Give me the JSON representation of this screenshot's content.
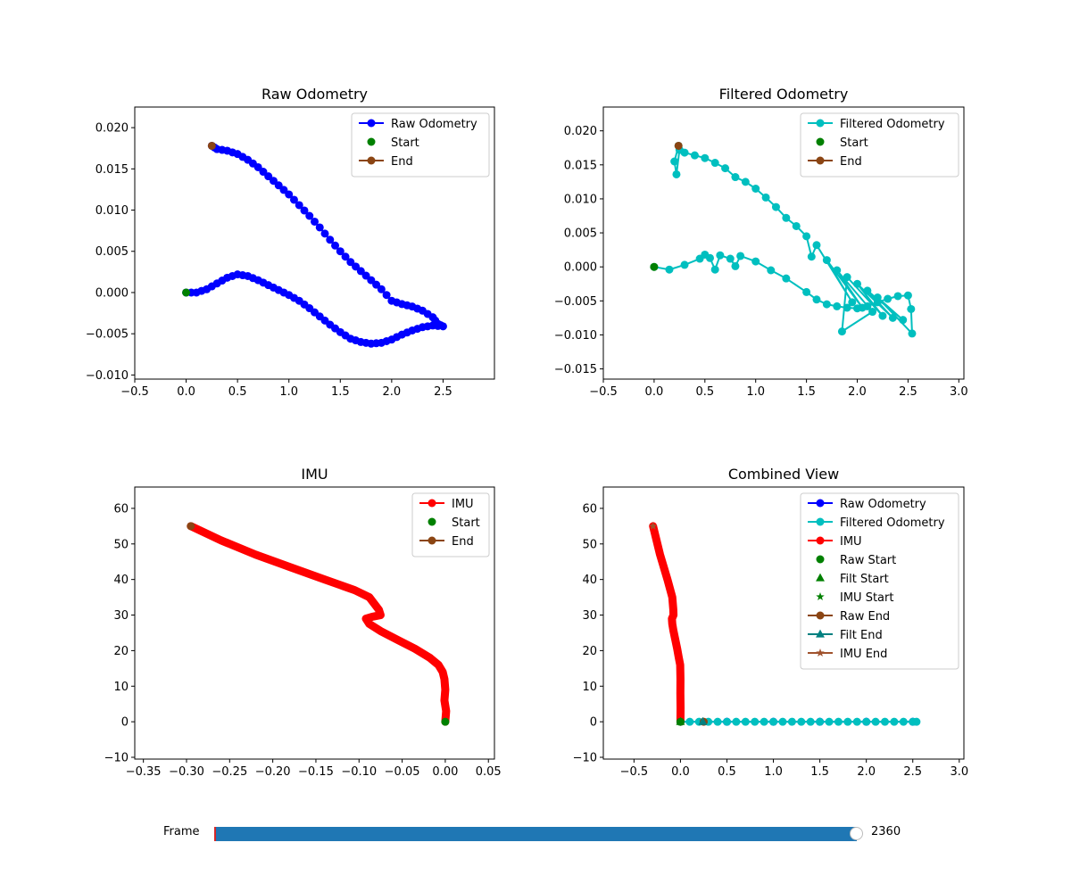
{
  "chart_data": [
    {
      "type": "line",
      "title": "Raw Odometry",
      "xlabel": "",
      "ylabel": "",
      "xlim": [
        -0.5,
        3.0
      ],
      "ylim": [
        -0.0105,
        0.0225
      ],
      "xticks": [
        -0.5,
        0.0,
        0.5,
        1.0,
        1.5,
        2.0,
        2.5
      ],
      "xtick_labels": [
        "−0.5",
        "0.0",
        "0.5",
        "1.0",
        "1.5",
        "2.0",
        "2.5"
      ],
      "yticks": [
        -0.01,
        -0.005,
        0.0,
        0.005,
        0.01,
        0.015,
        0.02
      ],
      "ytick_labels": [
        "−0.010",
        "−0.005",
        "0.000",
        "0.005",
        "0.010",
        "0.015",
        "0.020"
      ],
      "grid": false,
      "legend_position": "top-right",
      "series": [
        {
          "name": "Raw Odometry",
          "kind": "line-markers",
          "color": "#0000ff",
          "smooth": true,
          "x": [
            0.0,
            0.1,
            0.2,
            0.3,
            0.4,
            0.5,
            0.6,
            0.7,
            0.8,
            0.9,
            1.0,
            1.1,
            1.2,
            1.3,
            1.4,
            1.5,
            1.6,
            1.7,
            1.8,
            1.9,
            2.0,
            2.1,
            2.2,
            2.3,
            2.4,
            2.5,
            2.45,
            2.4,
            2.3,
            2.2,
            2.1,
            2.0,
            1.9,
            1.8,
            1.7,
            1.6,
            1.5,
            1.4,
            1.3,
            1.2,
            1.1,
            1.0,
            0.9,
            0.8,
            0.7,
            0.6,
            0.5,
            0.4,
            0.3,
            0.25
          ],
          "y": [
            0.0,
            0.0,
            0.0004,
            0.0011,
            0.0018,
            0.0022,
            0.002,
            0.0015,
            0.0009,
            0.0003,
            -0.0003,
            -0.001,
            -0.0019,
            -0.0029,
            -0.0039,
            -0.0048,
            -0.0056,
            -0.006,
            -0.0062,
            -0.0061,
            -0.0057,
            -0.0051,
            -0.0046,
            -0.0042,
            -0.004,
            -0.0041,
            -0.0038,
            -0.003,
            -0.0022,
            -0.0017,
            -0.0014,
            -0.001,
            0.0004,
            0.0015,
            0.0026,
            0.0037,
            0.005,
            0.0064,
            0.0079,
            0.0093,
            0.0106,
            0.0119,
            0.013,
            0.0141,
            0.0152,
            0.0161,
            0.0168,
            0.0172,
            0.0174,
            0.0178
          ]
        },
        {
          "name": "Start",
          "kind": "marker",
          "color": "#008000",
          "x": [
            0.0
          ],
          "y": [
            0.0
          ]
        },
        {
          "name": "End",
          "kind": "marker",
          "color": "#8b4513",
          "legend_line": true,
          "x": [
            0.25
          ],
          "y": [
            0.0178
          ]
        }
      ]
    },
    {
      "type": "line",
      "title": "Filtered Odometry",
      "xlabel": "",
      "ylabel": "",
      "xlim": [
        -0.5,
        3.05
      ],
      "ylim": [
        -0.0165,
        0.0235
      ],
      "xticks": [
        -0.5,
        0.0,
        0.5,
        1.0,
        1.5,
        2.0,
        2.5,
        3.0
      ],
      "xtick_labels": [
        "−0.5",
        "0.0",
        "0.5",
        "1.0",
        "1.5",
        "2.0",
        "2.5",
        "3.0"
      ],
      "yticks": [
        -0.015,
        -0.01,
        -0.005,
        0.0,
        0.005,
        0.01,
        0.015,
        0.02
      ],
      "ytick_labels": [
        "−0.015",
        "−0.010",
        "−0.005",
        "0.000",
        "0.005",
        "0.010",
        "0.015",
        "0.020"
      ],
      "grid": false,
      "legend_position": "top-right",
      "series": [
        {
          "name": "Filtered Odometry",
          "kind": "line-markers",
          "color": "#00bfbf",
          "smooth": false,
          "x": [
            0.0,
            0.15,
            0.3,
            0.45,
            0.5,
            0.55,
            0.6,
            0.65,
            0.75,
            0.8,
            0.85,
            1.0,
            1.15,
            1.3,
            1.5,
            1.6,
            1.7,
            1.8,
            1.9,
            2.0,
            2.1,
            2.2,
            2.3,
            2.4,
            2.5,
            2.53,
            2.54,
            2.2,
            2.45,
            2.1,
            2.35,
            2.0,
            2.25,
            1.9,
            1.85,
            2.15,
            1.8,
            2.05,
            1.7,
            1.95,
            1.6,
            1.55,
            1.5,
            1.4,
            1.3,
            1.2,
            1.1,
            1.0,
            0.9,
            0.8,
            0.7,
            0.6,
            0.5,
            0.4,
            0.3,
            0.25,
            0.22,
            0.2,
            0.24
          ],
          "y": [
            0.0,
            -0.0004,
            0.0003,
            0.0012,
            0.0018,
            0.0013,
            -0.0004,
            0.0017,
            0.0012,
            0.0001,
            0.0016,
            0.0008,
            -0.0005,
            -0.0017,
            -0.0037,
            -0.0048,
            -0.0055,
            -0.0058,
            -0.006,
            -0.0061,
            -0.0058,
            -0.0052,
            -0.0047,
            -0.0043,
            -0.0042,
            -0.0062,
            -0.0098,
            -0.0045,
            -0.0078,
            -0.0035,
            -0.0075,
            -0.0025,
            -0.0072,
            -0.0015,
            -0.0095,
            -0.0066,
            -0.0005,
            -0.006,
            0.001,
            -0.0052,
            0.0032,
            0.0015,
            0.0045,
            0.006,
            0.0072,
            0.0088,
            0.0102,
            0.0115,
            0.0125,
            0.0132,
            0.0145,
            0.0153,
            0.016,
            0.0164,
            0.0168,
            0.0172,
            0.0136,
            0.0155,
            0.0178
          ]
        },
        {
          "name": "Start",
          "kind": "marker",
          "color": "#008000",
          "x": [
            0.0
          ],
          "y": [
            0.0
          ]
        },
        {
          "name": "End",
          "kind": "marker",
          "color": "#8b4513",
          "legend_line": true,
          "x": [
            0.24
          ],
          "y": [
            0.0178
          ]
        }
      ]
    },
    {
      "type": "line",
      "title": "IMU",
      "xlabel": "",
      "ylabel": "",
      "xlim": [
        -0.36,
        0.057
      ],
      "ylim": [
        -10.5,
        66.0
      ],
      "xticks": [
        -0.35,
        -0.3,
        -0.25,
        -0.2,
        -0.15,
        -0.1,
        -0.05,
        0.0,
        0.05
      ],
      "xtick_labels": [
        "−0.35",
        "−0.30",
        "−0.25",
        "−0.20",
        "−0.15",
        "−0.10",
        "−0.05",
        "0.00",
        "0.05"
      ],
      "yticks": [
        -10,
        0,
        10,
        20,
        30,
        40,
        50,
        60
      ],
      "ytick_labels": [
        "−10",
        "0",
        "10",
        "20",
        "30",
        "40",
        "50",
        "60"
      ],
      "grid": false,
      "legend_position": "top-right",
      "series": [
        {
          "name": "IMU",
          "kind": "thick-line",
          "color": "#ff0000",
          "x": [
            0.0,
            0.001,
            -0.001,
            0.0,
            -0.001,
            -0.003,
            -0.008,
            -0.018,
            -0.035,
            -0.055,
            -0.075,
            -0.088,
            -0.092,
            -0.085,
            -0.075,
            -0.077,
            -0.088,
            -0.105,
            -0.14,
            -0.18,
            -0.22,
            -0.26,
            -0.295
          ],
          "y": [
            0.0,
            3.0,
            6.0,
            9.0,
            12.0,
            14.0,
            16.0,
            18.0,
            20.5,
            23.0,
            25.5,
            27.5,
            29.0,
            29.5,
            30.0,
            31.5,
            35.0,
            37.0,
            40.0,
            43.5,
            47.0,
            51.0,
            55.0
          ]
        },
        {
          "name": "Start",
          "kind": "marker",
          "color": "#008000",
          "x": [
            0.0
          ],
          "y": [
            0.0
          ]
        },
        {
          "name": "End",
          "kind": "marker",
          "color": "#8b4513",
          "legend_line": true,
          "x": [
            -0.295
          ],
          "y": [
            55.0
          ]
        }
      ]
    },
    {
      "type": "line",
      "title": "Combined View",
      "xlabel": "",
      "ylabel": "",
      "xlim": [
        -0.83,
        3.05
      ],
      "ylim": [
        -10.5,
        66.0
      ],
      "xticks": [
        -0.5,
        0.0,
        0.5,
        1.0,
        1.5,
        2.0,
        2.5,
        3.0
      ],
      "xtick_labels": [
        "−0.5",
        "0.0",
        "0.5",
        "1.0",
        "1.5",
        "2.0",
        "2.5",
        "3.0"
      ],
      "yticks": [
        -10,
        0,
        10,
        20,
        30,
        40,
        50,
        60
      ],
      "ytick_labels": [
        "−10",
        "0",
        "10",
        "20",
        "30",
        "40",
        "50",
        "60"
      ],
      "grid": false,
      "legend_position": "top-right",
      "series": [
        {
          "name": "Raw Odometry",
          "kind": "line-markers",
          "color": "#0000ff",
          "x": [
            0.0,
            0.5,
            1.0,
            1.5,
            2.0,
            2.5
          ],
          "y": [
            0.0,
            0.0,
            0.0,
            0.0,
            0.0,
            0.0
          ]
        },
        {
          "name": "Filtered Odometry",
          "kind": "line-markers",
          "color": "#00bfbf",
          "x": [
            0.0,
            0.1,
            0.2,
            0.3,
            0.4,
            0.5,
            0.6,
            0.7,
            0.8,
            0.9,
            1.0,
            1.1,
            1.2,
            1.3,
            1.4,
            1.5,
            1.6,
            1.7,
            1.8,
            1.9,
            2.0,
            2.1,
            2.2,
            2.3,
            2.4,
            2.5,
            2.54
          ],
          "y": [
            0.0,
            0.0,
            0.0,
            0.0,
            0.0,
            0.0,
            0.0,
            0.0,
            0.0,
            0.0,
            0.0,
            0.0,
            0.0,
            0.0,
            0.0,
            0.0,
            0.0,
            0.0,
            0.0,
            0.0,
            0.0,
            0.0,
            0.0,
            0.0,
            0.0,
            0.0,
            0.0
          ]
        },
        {
          "name": "IMU",
          "kind": "thick-line",
          "color": "#ff0000",
          "x": [
            0.0,
            0.001,
            -0.001,
            0.0,
            -0.003,
            -0.018,
            -0.035,
            -0.055,
            -0.075,
            -0.088,
            -0.092,
            -0.075,
            -0.077,
            -0.088,
            -0.14,
            -0.22,
            -0.295
          ],
          "y": [
            0.0,
            4.0,
            8.0,
            12.0,
            16.0,
            18.0,
            20.5,
            23.0,
            25.5,
            27.5,
            29.0,
            30.0,
            31.5,
            35.0,
            40.0,
            47.0,
            55.0
          ]
        },
        {
          "name": "Raw Start",
          "kind": "marker",
          "color": "#008000",
          "x": [
            0.0
          ],
          "y": [
            0.0
          ]
        },
        {
          "name": "Filt Start",
          "kind": "triangle",
          "color": "#008000",
          "x": [
            0.0
          ],
          "y": [
            0.0
          ]
        },
        {
          "name": "IMU Start",
          "kind": "star",
          "color": "#008000",
          "x": [
            0.0
          ],
          "y": [
            0.0
          ]
        },
        {
          "name": "Raw End",
          "kind": "marker",
          "color": "#8b4513",
          "legend_line": true,
          "x": [
            0.25
          ],
          "y": [
            0.0
          ]
        },
        {
          "name": "Filt End",
          "kind": "triangle",
          "color": "#008080",
          "legend_line": true,
          "x": [
            0.24
          ],
          "y": [
            0.0
          ]
        },
        {
          "name": "IMU End",
          "kind": "star",
          "color": "#a0522d",
          "legend_line": true,
          "x": [
            -0.295
          ],
          "y": [
            55.0
          ]
        }
      ]
    }
  ],
  "slider": {
    "label": "Frame",
    "value": "2360",
    "fraction": 1.0
  }
}
